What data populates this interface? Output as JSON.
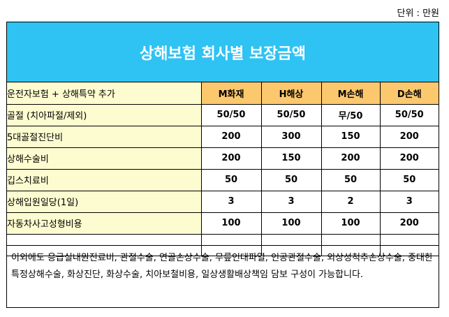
{
  "unit_label": "단위 : 만원",
  "title": "상해보험 회사별 보장금액",
  "header": {
    "label": "운전자보험 + 상해특약 추가",
    "companies": [
      "M화재",
      "H해상",
      "M손해",
      "D손해"
    ]
  },
  "rows": [
    {
      "label": "골절 (치아파절/제외)",
      "values": [
        "50/50",
        "50/50",
        "무/50",
        "50/50"
      ]
    },
    {
      "label": "5대골절진단비",
      "values": [
        "200",
        "300",
        "150",
        "200"
      ]
    },
    {
      "label": "상해수술비",
      "values": [
        "200",
        "150",
        "200",
        "200"
      ]
    },
    {
      "label": "깁스치료비",
      "values": [
        "50",
        "50",
        "50",
        "50"
      ]
    },
    {
      "label": "상해입원일당(1일)",
      "values": [
        "3",
        "3",
        "2",
        "3"
      ]
    },
    {
      "label": "자동차사고성형비용",
      "values": [
        "100",
        "100",
        "100",
        "200"
      ]
    }
  ],
  "note": "이외에도 응급실내원진료비, 관절수술, 연골손상수술, 무릎인대파열, 인공관절수술, 외상성척추손상수술, 중대한특정상해수술, 화상진단, 화상수술, 치아보철비용, 일상생활배상책임 담보 구성이 가능합니다.",
  "colors": {
    "title_bg": "#2ec3f3",
    "title_text": "#ffffff",
    "header_bg": "#fcc86e",
    "label_bg": "#fdfcd0"
  }
}
